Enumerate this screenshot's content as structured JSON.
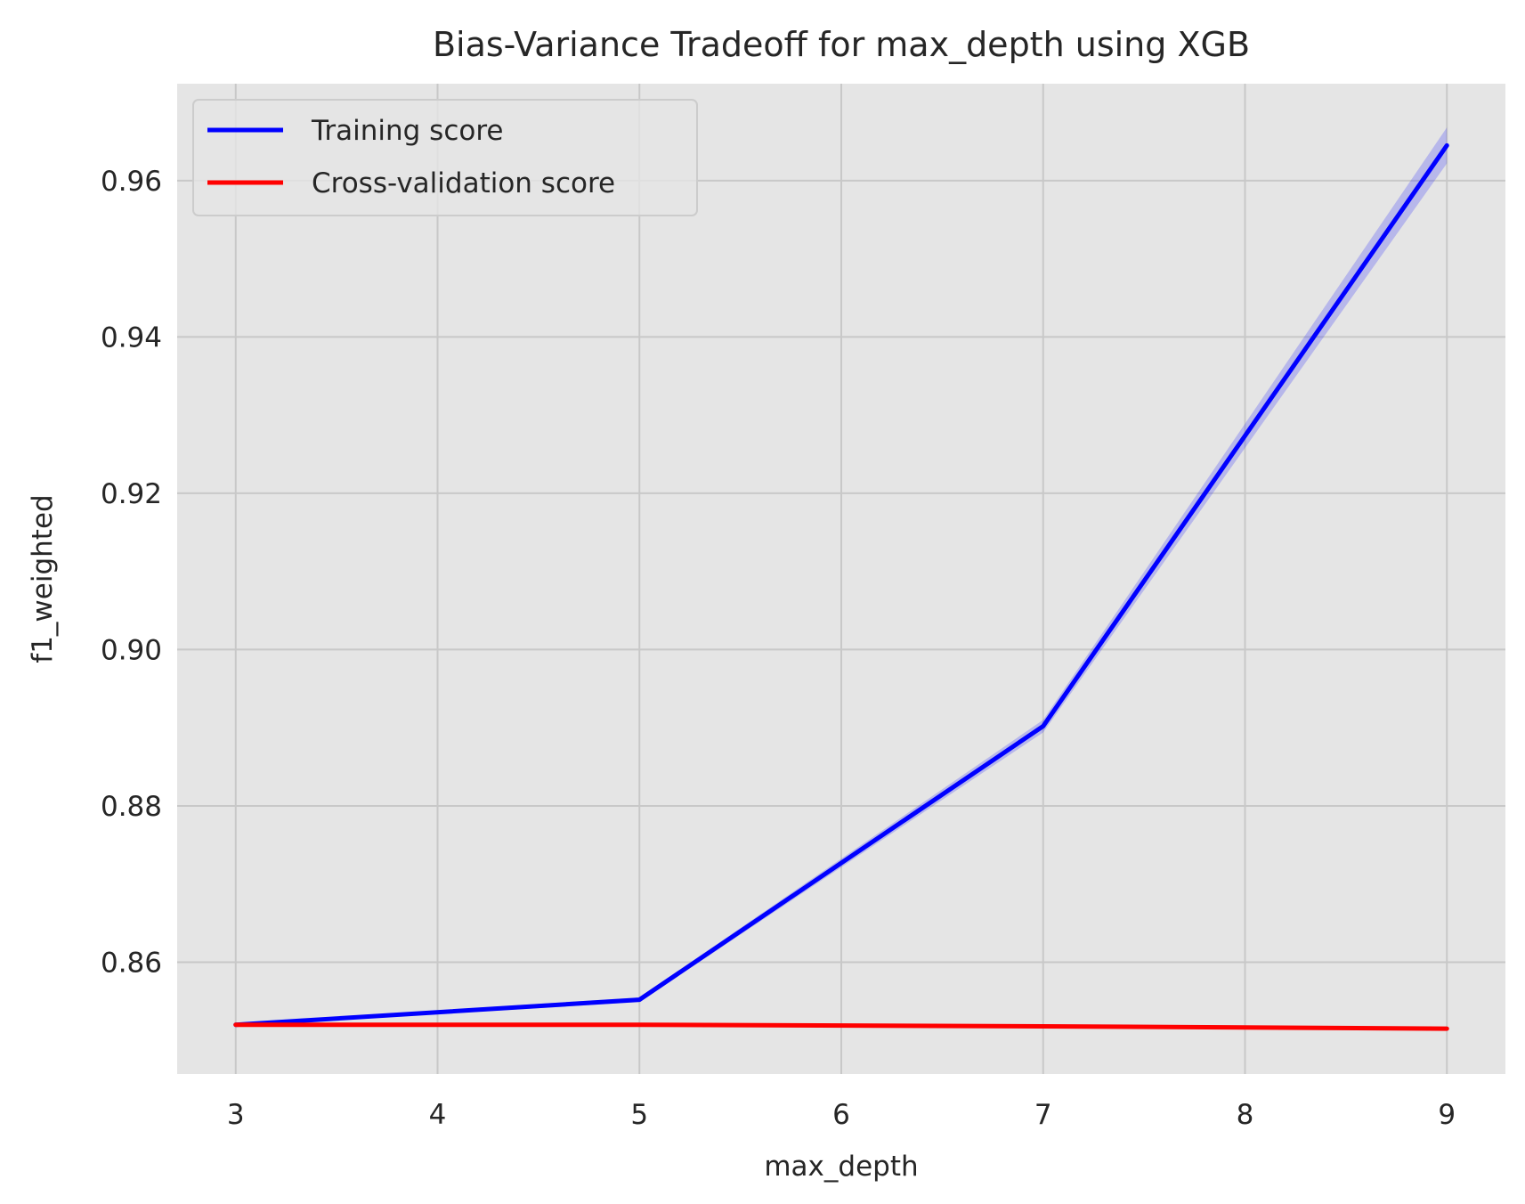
{
  "chart_data": {
    "type": "line",
    "title": "Bias-Variance Tradeoff for max_depth using XGB",
    "xlabel": "max_depth",
    "ylabel": "f1_weighted",
    "x": [
      3,
      5,
      7,
      9
    ],
    "xticks": [
      "3",
      "4",
      "5",
      "6",
      "7",
      "8",
      "9"
    ],
    "xtick_values": [
      3,
      4,
      5,
      6,
      7,
      8,
      9
    ],
    "yticks": [
      "0.86",
      "0.88",
      "0.90",
      "0.92",
      "0.94",
      "0.96"
    ],
    "ytick_values": [
      0.86,
      0.88,
      0.9,
      0.92,
      0.94,
      0.96
    ],
    "xlim": [
      2.71,
      9.29
    ],
    "ylim": [
      0.8457,
      0.9724
    ],
    "grid": true,
    "legend_position": "upper-left",
    "background": "#e5e5e5",
    "series": [
      {
        "name": "Training score",
        "color": "#0000ff",
        "values": [
          0.852,
          0.8552,
          0.8902,
          0.9645
        ],
        "std": [
          0.0002,
          0.0003,
          0.0008,
          0.0023
        ]
      },
      {
        "name": "Cross-validation score",
        "color": "#ff0000",
        "values": [
          0.852,
          0.852,
          0.8518,
          0.8515
        ],
        "std": [
          0.0002,
          0.0002,
          0.0002,
          0.0002
        ]
      }
    ]
  }
}
